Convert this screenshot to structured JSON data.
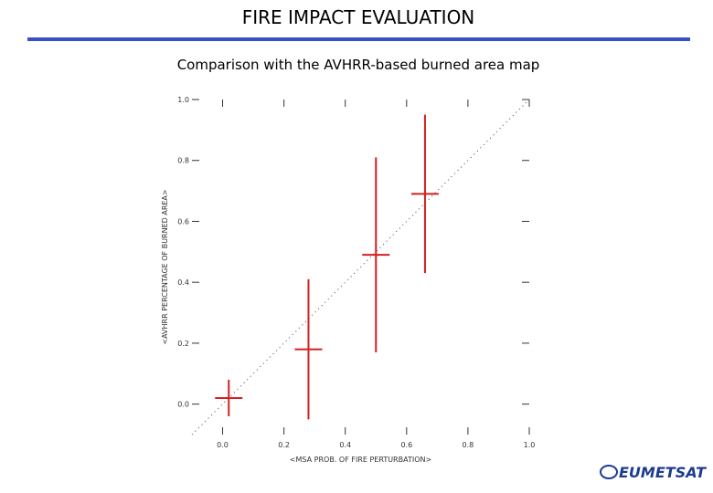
{
  "slide": {
    "title": "FIRE IMPACT EVALUATION",
    "subtitle": "Comparison with the AVHRR-based burned area map",
    "logo": "EUMETSAT"
  },
  "chart_data": {
    "type": "errorbar",
    "x_label": "<MSA PROB. OF FIRE PERTURBATION>",
    "y_label": "<AVHRR PERCENTAGE OF BURNED AREA>",
    "xlim": [
      -0.1,
      1.0
    ],
    "ylim": [
      -0.1,
      1.0
    ],
    "xticks": [
      {
        "value": 0,
        "label": "0.0"
      },
      {
        "value": 0.2,
        "label": "0.2"
      },
      {
        "value": 0.4,
        "label": "0.4"
      },
      {
        "value": 0.6,
        "label": "0.6"
      },
      {
        "value": 0.8,
        "label": "0.8"
      },
      {
        "value": 1,
        "label": "1.0"
      }
    ],
    "yticks": [
      {
        "value": 0,
        "label": "0.0"
      },
      {
        "value": 0.2,
        "label": "0.2"
      },
      {
        "value": 0.4,
        "label": "0.4"
      },
      {
        "value": 0.6,
        "label": "0.6"
      },
      {
        "value": 0.8,
        "label": "0.8"
      },
      {
        "value": 1,
        "label": "1.0"
      }
    ],
    "series": [
      {
        "color": "#d42020",
        "x": [
          0.02,
          0.28,
          0.5,
          0.66
        ],
        "values": [
          0.02,
          0.18,
          0.49,
          0.69
        ],
        "errors": [
          0.06,
          0.23,
          0.32,
          0.26
        ]
      }
    ]
  }
}
